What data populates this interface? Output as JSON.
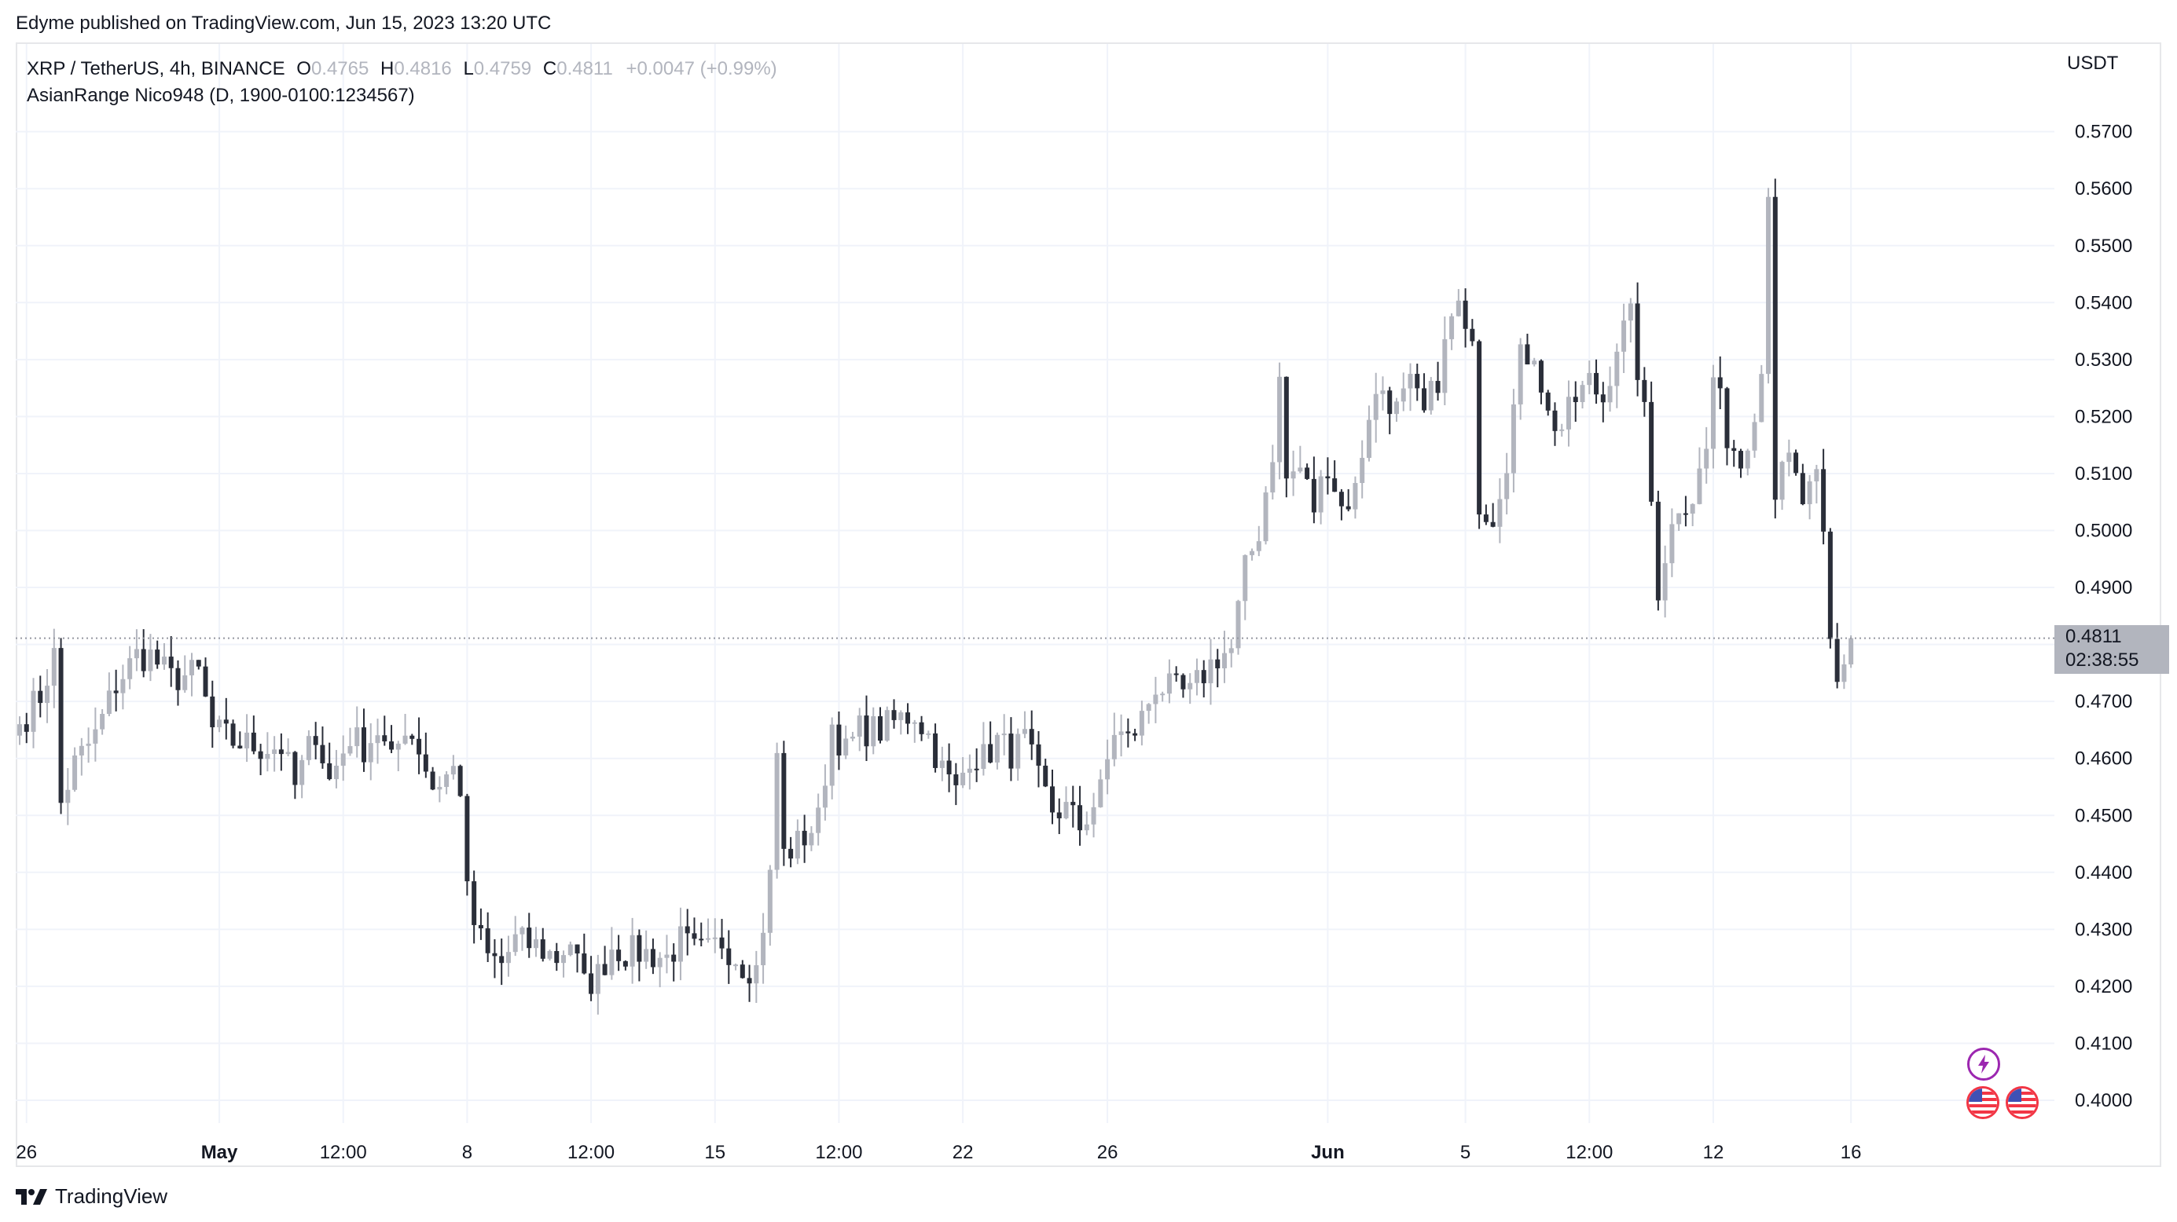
{
  "header": {
    "published_by": "Edyme published on TradingView.com, Jun 15, 2023 13:20 UTC"
  },
  "legend": {
    "symbol": "XRP / TetherUS, 4h, BINANCE",
    "open_label": "O",
    "open": "0.4765",
    "high_label": "H",
    "high": "0.4816",
    "low_label": "L",
    "low": "0.4759",
    "close_label": "C",
    "close": "0.4811",
    "change": "+0.0047 (+0.99%)",
    "indicator": "AsianRange Nico948 (D, 1900-0100:1234567)"
  },
  "price_axis": {
    "currency": "USDT",
    "last_price": "0.4811",
    "countdown": "02:38:55"
  },
  "footer": {
    "brand": "TradingView"
  },
  "icons": [
    "lightning-icon",
    "us-flag-icon",
    "us-flag-icon"
  ],
  "colors": {
    "up": "#b2b5be",
    "down": "#2a2e39",
    "grid": "#f0f3fa",
    "axis_text": "#131722",
    "price_label_bg": "#b2b5be",
    "badge_purple": "#9c27b0",
    "badge_red": "#f23645"
  },
  "chart_data": {
    "type": "candlestick",
    "timeframe": "4h",
    "ylim": [
      0.395,
      0.575
    ],
    "y_ticks": [
      "0.5700",
      "0.5600",
      "0.5500",
      "0.5400",
      "0.5300",
      "0.5200",
      "0.5100",
      "0.5000",
      "0.4900",
      "0.4800",
      "0.4700",
      "0.4600",
      "0.4500",
      "0.4400",
      "0.4300",
      "0.4200",
      "0.4100",
      "0.4000"
    ],
    "x_ticks": [
      {
        "label": "26",
        "bar": 1,
        "bold": false
      },
      {
        "label": "May",
        "bar": 29,
        "bold": true
      },
      {
        "label": "12:00",
        "bar": 47,
        "bold": false
      },
      {
        "label": "8",
        "bar": 65,
        "bold": false
      },
      {
        "label": "12:00",
        "bar": 83,
        "bold": false
      },
      {
        "label": "15",
        "bar": 101,
        "bold": false
      },
      {
        "label": "12:00",
        "bar": 119,
        "bold": false
      },
      {
        "label": "22",
        "bar": 137,
        "bold": false
      },
      {
        "label": "26",
        "bar": 158,
        "bold": false
      },
      {
        "label": "Jun",
        "bar": 190,
        "bold": true
      },
      {
        "label": "5",
        "bar": 210,
        "bold": false
      },
      {
        "label": "12:00",
        "bar": 228,
        "bold": false
      },
      {
        "label": "12",
        "bar": 246,
        "bold": false
      },
      {
        "label": "16",
        "bar": 266,
        "bold": false
      }
    ],
    "last_price": 0.4811,
    "anchors": [
      [
        0,
        0.466
      ],
      [
        3,
        0.471
      ],
      [
        5,
        0.478
      ],
      [
        6,
        0.452
      ],
      [
        8,
        0.459
      ],
      [
        11,
        0.464
      ],
      [
        14,
        0.473
      ],
      [
        17,
        0.478
      ],
      [
        19,
        0.478
      ],
      [
        22,
        0.474
      ],
      [
        26,
        0.475
      ],
      [
        28,
        0.465
      ],
      [
        31,
        0.463
      ],
      [
        35,
        0.462
      ],
      [
        38,
        0.462
      ],
      [
        40,
        0.455
      ],
      [
        43,
        0.465
      ],
      [
        45,
        0.456
      ],
      [
        48,
        0.464
      ],
      [
        50,
        0.462
      ],
      [
        52,
        0.465
      ],
      [
        54,
        0.459
      ],
      [
        56,
        0.466
      ],
      [
        58,
        0.462
      ],
      [
        60,
        0.455
      ],
      [
        63,
        0.458
      ],
      [
        64,
        0.455
      ],
      [
        65,
        0.436
      ],
      [
        66,
        0.431
      ],
      [
        68,
        0.425
      ],
      [
        70,
        0.424
      ],
      [
        72,
        0.428
      ],
      [
        75,
        0.427
      ],
      [
        78,
        0.425
      ],
      [
        80,
        0.428
      ],
      [
        82,
        0.42
      ],
      [
        84,
        0.422
      ],
      [
        86,
        0.427
      ],
      [
        88,
        0.426
      ],
      [
        90,
        0.426
      ],
      [
        94,
        0.425
      ],
      [
        96,
        0.428
      ],
      [
        98,
        0.426
      ],
      [
        100,
        0.426
      ],
      [
        102,
        0.428
      ],
      [
        105,
        0.424
      ],
      [
        107,
        0.423
      ],
      [
        109,
        0.439
      ],
      [
        110,
        0.461
      ],
      [
        111,
        0.443
      ],
      [
        113,
        0.445
      ],
      [
        116,
        0.449
      ],
      [
        118,
        0.466
      ],
      [
        120,
        0.461
      ],
      [
        122,
        0.465
      ],
      [
        125,
        0.465
      ],
      [
        128,
        0.467
      ],
      [
        130,
        0.468
      ],
      [
        132,
        0.464
      ],
      [
        134,
        0.458
      ],
      [
        136,
        0.454
      ],
      [
        138,
        0.461
      ],
      [
        140,
        0.46
      ],
      [
        142,
        0.463
      ],
      [
        144,
        0.461
      ],
      [
        146,
        0.463
      ],
      [
        148,
        0.456
      ],
      [
        150,
        0.451
      ],
      [
        152,
        0.451
      ],
      [
        154,
        0.448
      ],
      [
        157,
        0.454
      ],
      [
        159,
        0.465
      ],
      [
        161,
        0.463
      ],
      [
        163,
        0.467
      ],
      [
        165,
        0.473
      ],
      [
        167,
        0.472
      ],
      [
        170,
        0.471
      ],
      [
        172,
        0.475
      ],
      [
        174,
        0.478
      ],
      [
        176,
        0.479
      ],
      [
        178,
        0.493
      ],
      [
        180,
        0.5
      ],
      [
        182,
        0.514
      ],
      [
        183,
        0.526
      ],
      [
        184,
        0.509
      ],
      [
        186,
        0.511
      ],
      [
        188,
        0.504
      ],
      [
        190,
        0.512
      ],
      [
        192,
        0.504
      ],
      [
        194,
        0.507
      ],
      [
        196,
        0.521
      ],
      [
        198,
        0.525
      ],
      [
        200,
        0.521
      ],
      [
        202,
        0.525
      ],
      [
        204,
        0.52
      ],
      [
        206,
        0.527
      ],
      [
        208,
        0.537
      ],
      [
        209,
        0.539
      ],
      [
        210,
        0.533
      ],
      [
        211,
        0.536
      ],
      [
        212,
        0.505
      ],
      [
        214,
        0.503
      ],
      [
        216,
        0.513
      ],
      [
        218,
        0.53
      ],
      [
        220,
        0.532
      ],
      [
        222,
        0.52
      ],
      [
        224,
        0.518
      ],
      [
        226,
        0.523
      ],
      [
        228,
        0.526
      ],
      [
        230,
        0.523
      ],
      [
        232,
        0.533
      ],
      [
        234,
        0.537
      ],
      [
        236,
        0.52
      ],
      [
        238,
        0.49
      ],
      [
        239,
        0.496
      ],
      [
        241,
        0.505
      ],
      [
        243,
        0.506
      ],
      [
        245,
        0.514
      ],
      [
        246,
        0.527
      ],
      [
        248,
        0.517
      ],
      [
        250,
        0.512
      ],
      [
        252,
        0.522
      ],
      [
        253,
        0.528
      ],
      [
        254,
        0.561
      ],
      [
        255,
        0.507
      ],
      [
        257,
        0.512
      ],
      [
        259,
        0.505
      ],
      [
        261,
        0.508
      ],
      [
        262,
        0.498
      ],
      [
        263,
        0.48
      ],
      [
        264,
        0.473
      ],
      [
        265,
        0.4765
      ],
      [
        266,
        0.4811
      ]
    ]
  }
}
